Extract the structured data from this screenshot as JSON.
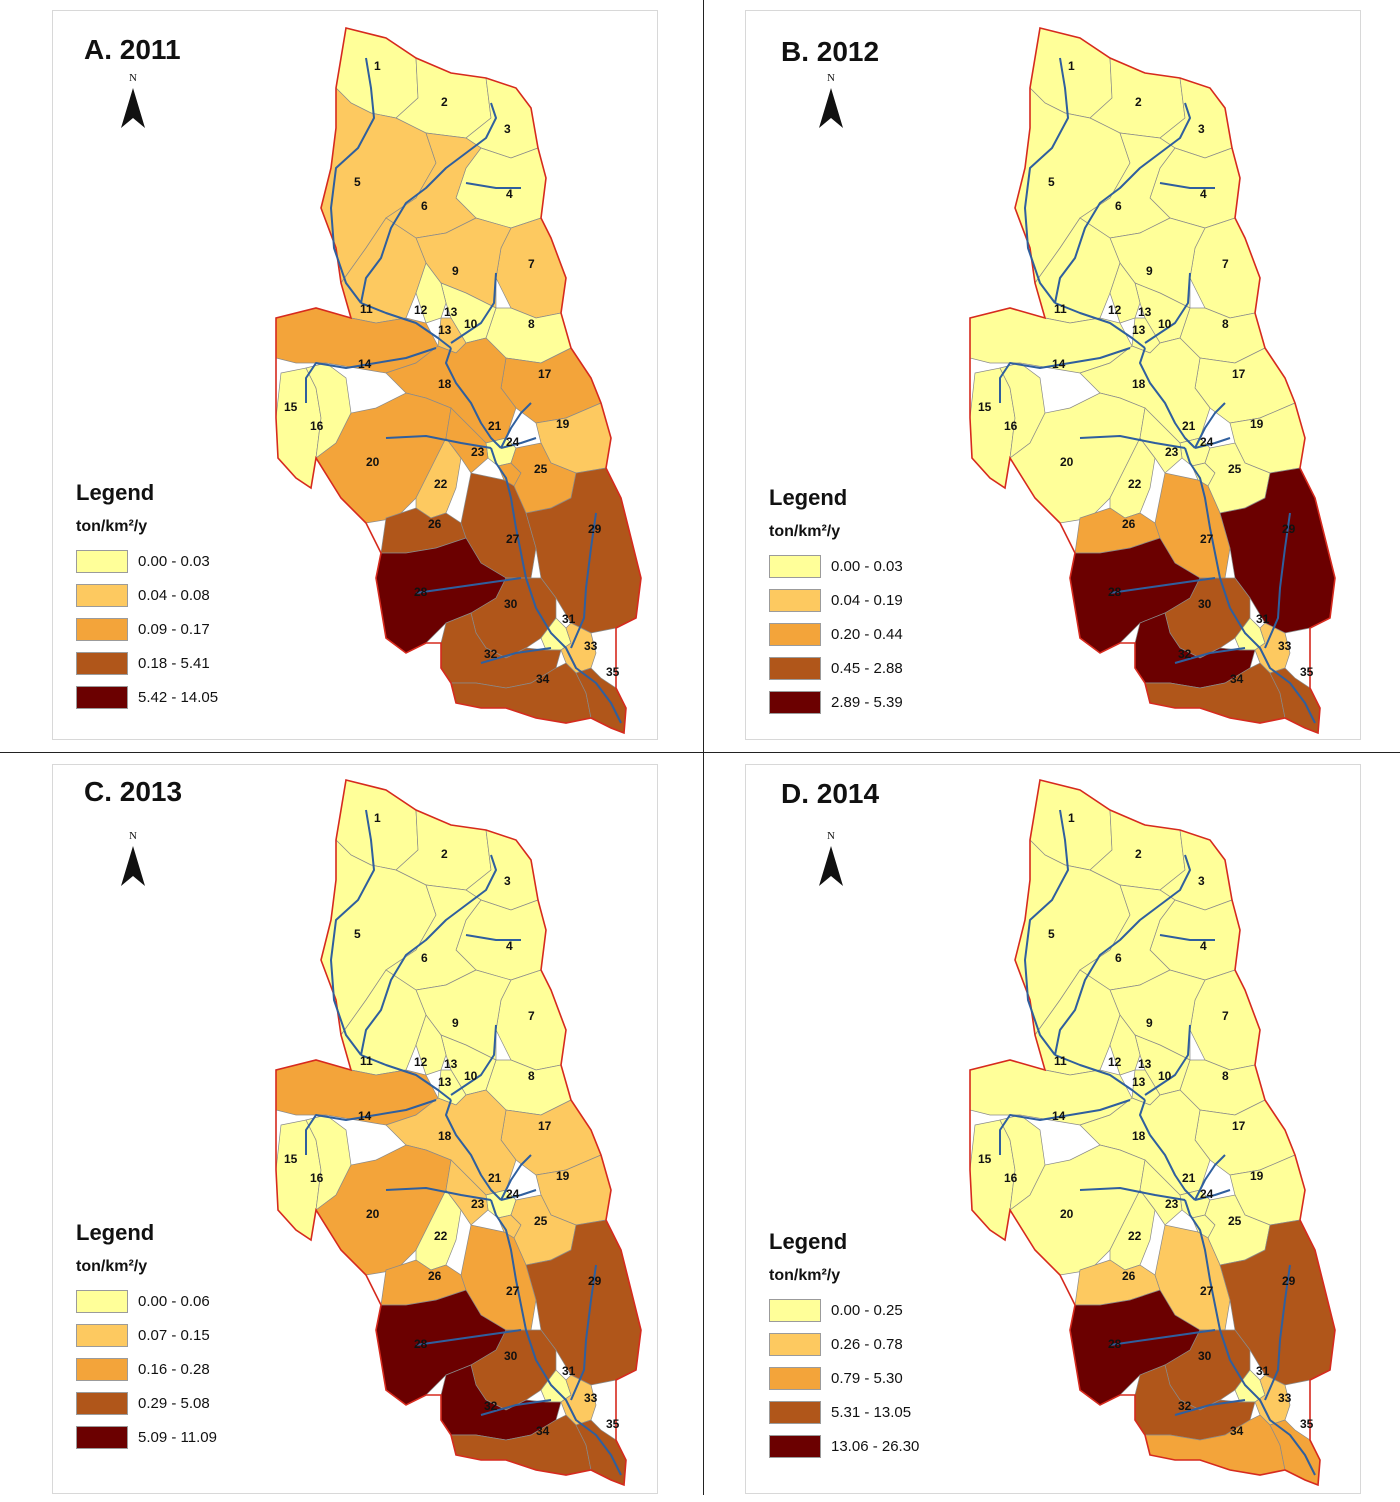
{
  "units": "ton/km²/y",
  "legend_title": "Legend",
  "north_label": "N",
  "subbasin_labels": [
    "1",
    "2",
    "3",
    "4",
    "5",
    "6",
    "7",
    "8",
    "9",
    "10",
    "11",
    "12",
    "13",
    "13",
    "14",
    "15",
    "16",
    "17",
    "18",
    "19",
    "20",
    "21",
    "22",
    "23",
    "24",
    "25",
    "26",
    "27",
    "28",
    "29",
    "30",
    "31",
    "32",
    "33",
    "34",
    "35"
  ],
  "panels": [
    {
      "id": "A",
      "title": "A. 2011",
      "legend": [
        {
          "label": "0.00 - 0.03",
          "color": "#ffff99"
        },
        {
          "label": "0.04 - 0.08",
          "color": "#fdc960"
        },
        {
          "label": "0.09 - 0.17",
          "color": "#f3a43a"
        },
        {
          "label": "0.18 - 5.41",
          "color": "#b0561a"
        },
        {
          "label": "5.42 - 14.05",
          "color": "#6b0000"
        }
      ],
      "classes": {
        "1": 0,
        "2": 0,
        "3": 0,
        "4": 0,
        "5": 1,
        "6": 1,
        "7": 1,
        "8": 0,
        "9": 1,
        "10": 0,
        "11": 1,
        "12": 0,
        "13": 1,
        "14": 2,
        "15": 0,
        "16": 0,
        "17": 2,
        "18": 2,
        "19": 1,
        "20": 2,
        "21": 0,
        "22": 1,
        "23": 2,
        "24": 2,
        "25": 2,
        "26": 3,
        "27": 3,
        "28": 4,
        "29": 3,
        "30": 3,
        "31": 0,
        "32": 3,
        "33": 1,
        "34": 3,
        "35": 3
      }
    },
    {
      "id": "B",
      "title": "B. 2012",
      "legend": [
        {
          "label": "0.00 - 0.03",
          "color": "#ffff99"
        },
        {
          "label": "0.04 - 0.19",
          "color": "#fdc960"
        },
        {
          "label": "0.20 - 0.44",
          "color": "#f3a43a"
        },
        {
          "label": "0.45 - 2.88",
          "color": "#b0561a"
        },
        {
          "label": "2.89 - 5.39",
          "color": "#6b0000"
        }
      ],
      "classes": {
        "1": 0,
        "2": 0,
        "3": 0,
        "4": 0,
        "5": 0,
        "6": 0,
        "7": 0,
        "8": 0,
        "9": 0,
        "10": 0,
        "11": 0,
        "12": 0,
        "13": 0,
        "14": 0,
        "15": 0,
        "16": 0,
        "17": 0,
        "18": 0,
        "19": 0,
        "20": 0,
        "21": 0,
        "22": 0,
        "23": 0,
        "24": 0,
        "25": 0,
        "26": 2,
        "27": 2,
        "28": 4,
        "29": 4,
        "30": 3,
        "31": 0,
        "32": 4,
        "33": 1,
        "34": 3,
        "35": 3
      }
    },
    {
      "id": "C",
      "title": "C. 2013",
      "legend": [
        {
          "label": "0.00 - 0.06",
          "color": "#ffff99"
        },
        {
          "label": "0.07 - 0.15",
          "color": "#fdc960"
        },
        {
          "label": "0.16 - 0.28",
          "color": "#f3a43a"
        },
        {
          "label": "0.29 - 5.08",
          "color": "#b0561a"
        },
        {
          "label": "5.09 - 11.09",
          "color": "#6b0000"
        }
      ],
      "classes": {
        "1": 0,
        "2": 0,
        "3": 0,
        "4": 0,
        "5": 0,
        "6": 0,
        "7": 0,
        "8": 0,
        "9": 0,
        "10": 0,
        "11": 0,
        "12": 0,
        "13": 0,
        "14": 2,
        "15": 0,
        "16": 0,
        "17": 1,
        "18": 1,
        "19": 1,
        "20": 2,
        "21": 0,
        "22": 0,
        "23": 1,
        "24": 1,
        "25": 1,
        "26": 2,
        "27": 2,
        "28": 4,
        "29": 3,
        "30": 3,
        "31": 0,
        "32": 4,
        "33": 1,
        "34": 3,
        "35": 3
      }
    },
    {
      "id": "D",
      "title": "D. 2014",
      "legend": [
        {
          "label": "0.00 - 0.25",
          "color": "#ffff99"
        },
        {
          "label": "0.26 - 0.78",
          "color": "#fdc960"
        },
        {
          "label": "0.79 - 5.30",
          "color": "#f3a43a"
        },
        {
          "label": "5.31 - 13.05",
          "color": "#b0561a"
        },
        {
          "label": "13.06 - 26.30",
          "color": "#6b0000"
        }
      ],
      "classes": {
        "1": 0,
        "2": 0,
        "3": 0,
        "4": 0,
        "5": 0,
        "6": 0,
        "7": 0,
        "8": 0,
        "9": 0,
        "10": 0,
        "11": 0,
        "12": 0,
        "13": 0,
        "14": 0,
        "15": 0,
        "16": 0,
        "17": 0,
        "18": 0,
        "19": 0,
        "20": 0,
        "21": 0,
        "22": 0,
        "23": 0,
        "24": 0,
        "25": 0,
        "26": 1,
        "27": 1,
        "28": 4,
        "29": 3,
        "30": 3,
        "31": 0,
        "32": 3,
        "33": 1,
        "34": 2,
        "35": 2
      }
    }
  ],
  "colors": {
    "basin_outline": "#d62a1e",
    "river": "#2f5f9e",
    "subbasin_line": "#8a8a8a"
  }
}
